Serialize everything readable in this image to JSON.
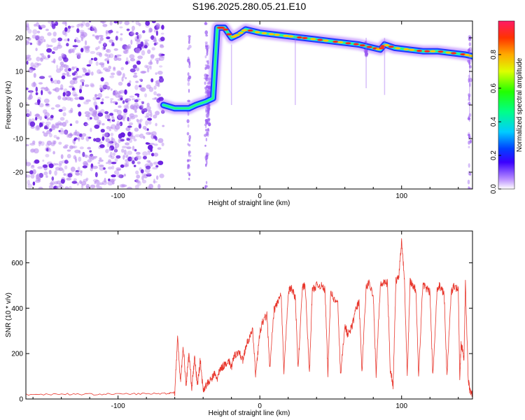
{
  "title": "S196.2025.280.05.21.E10",
  "colors": {
    "background": "#ffffff",
    "snr_line": "#e8362c",
    "speckle": "#8a3fe0",
    "axis": "#000000"
  },
  "chart_data": [
    {
      "type": "heatmap",
      "name": "spectrogram",
      "xlabel": "Height of straight line (km)",
      "ylabel": "Frequency (Hz)",
      "xlim": [
        -165,
        150
      ],
      "ylim": [
        -25,
        25
      ],
      "xticks": [
        -100,
        0,
        100
      ],
      "xtick_labels": [
        "-100",
        "0",
        "100"
      ],
      "yticks": [
        -20,
        -10,
        0,
        10,
        20
      ],
      "ytick_labels": [
        "-20",
        "-10",
        "0",
        "10",
        "20"
      ],
      "ridge": {
        "x": [
          -68,
          -60,
          -50,
          -45,
          -38,
          -33,
          -30,
          -25,
          -20,
          -15,
          -10,
          0,
          10,
          20,
          30,
          40,
          50,
          60,
          70,
          80,
          85,
          88,
          95,
          105,
          115,
          125,
          135,
          145,
          150
        ],
        "y": [
          0,
          -1,
          -1,
          0,
          1,
          2,
          23,
          23,
          20,
          21,
          22.5,
          21.5,
          21,
          20.5,
          20,
          19.5,
          19,
          18.5,
          18,
          17,
          16.5,
          18,
          17,
          16.5,
          16,
          16,
          15.5,
          15,
          14.5
        ]
      },
      "colorbar": {
        "label": "Normalized spectral amplitude",
        "range": [
          0,
          1
        ],
        "ticks": [
          0.0,
          0.2,
          0.4,
          0.6,
          0.8
        ],
        "tick_labels": [
          "0.0",
          "0.2",
          "0.4",
          "0.6",
          "0.8"
        ]
      }
    },
    {
      "type": "line",
      "name": "snr",
      "xlabel": "Height of straight line (km)",
      "ylabel": "SNR (10 * v/v)",
      "xlim": [
        -165,
        150
      ],
      "ylim": [
        0,
        740
      ],
      "xticks": [
        -100,
        0,
        100
      ],
      "xtick_labels": [
        "-100",
        "0",
        "100"
      ],
      "yticks": [
        0,
        200,
        400,
        600
      ],
      "ytick_labels": [
        "0",
        "200",
        "400",
        "600"
      ],
      "series": [
        {
          "name": "SNR",
          "x": [
            -165,
            -140,
            -120,
            -100,
            -80,
            -65,
            -60,
            -58,
            -56,
            -54,
            -52,
            -50,
            -48,
            -46,
            -44,
            -42,
            -40,
            -38,
            -35,
            -32,
            -30,
            -28,
            -25,
            -22,
            -20,
            -18,
            -15,
            -12,
            -10,
            -8,
            -5,
            -3,
            0,
            2,
            5,
            7,
            10,
            12,
            15,
            17,
            20,
            22,
            25,
            27,
            30,
            32,
            35,
            37,
            40,
            43,
            46,
            48,
            50,
            52,
            55,
            57,
            60,
            62,
            65,
            68,
            70,
            72,
            75,
            77,
            80,
            82,
            85,
            87,
            90,
            92,
            94,
            96,
            98,
            100,
            102,
            104,
            106,
            108,
            110,
            112,
            115,
            117,
            120,
            122,
            125,
            127,
            130,
            132,
            135,
            137,
            140,
            141,
            142,
            143,
            144,
            145,
            147,
            148,
            150
          ],
          "y": [
            20,
            22,
            21,
            22,
            23,
            25,
            30,
            270,
            80,
            230,
            60,
            200,
            50,
            180,
            60,
            170,
            40,
            60,
            80,
            110,
            90,
            130,
            150,
            170,
            140,
            190,
            210,
            170,
            230,
            260,
            300,
            110,
            290,
            340,
            370,
            130,
            390,
            420,
            460,
            110,
            470,
            490,
            450,
            130,
            490,
            500,
            110,
            480,
            500,
            500,
            480,
            110,
            480,
            440,
            420,
            100,
            330,
            280,
            320,
            400,
            430,
            120,
            490,
            510,
            460,
            110,
            500,
            510,
            510,
            130,
            60,
            520,
            540,
            700,
            530,
            100,
            520,
            500,
            480,
            110,
            510,
            490,
            470,
            100,
            480,
            500,
            460,
            100,
            470,
            500,
            480,
            100,
            240,
            220,
            180,
            510,
            90,
            40,
            20
          ]
        }
      ]
    }
  ]
}
